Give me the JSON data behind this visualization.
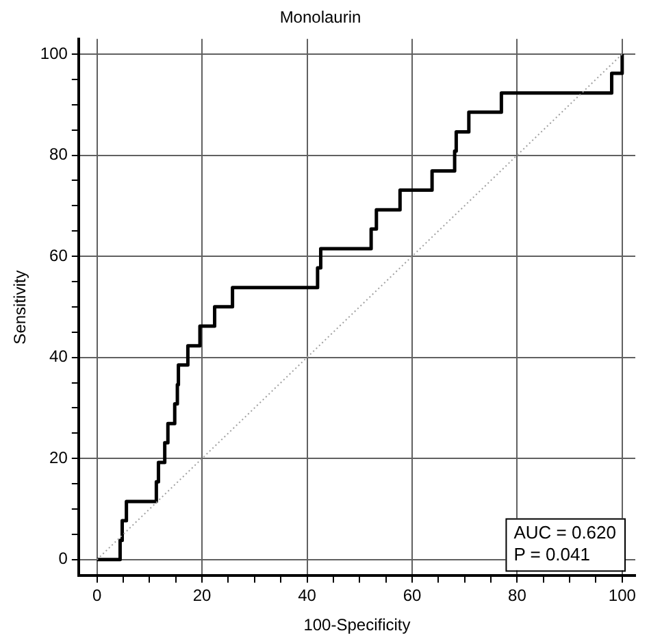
{
  "chart_data": {
    "type": "step",
    "title": "Monolaurin",
    "xlabel": "100-Specificity",
    "ylabel": "Sensitivity",
    "xlim": [
      -3.5,
      102.5
    ],
    "ylim": [
      -3.2,
      103
    ],
    "xticks": [
      0,
      {
        "value": 5,
        "label": null
      },
      {
        "value": 10,
        "label": null
      },
      {
        "value": 15,
        "label": null
      },
      20,
      {
        "value": 25,
        "label": null
      },
      {
        "value": 30,
        "label": null
      },
      {
        "value": 35,
        "label": null
      },
      40,
      {
        "value": 45,
        "label": null
      },
      {
        "value": 50,
        "label": null
      },
      {
        "value": 55,
        "label": null
      },
      60,
      {
        "value": 65,
        "label": null
      },
      {
        "value": 70,
        "label": null
      },
      {
        "value": 75,
        "label": null
      },
      80,
      {
        "value": 85,
        "label": null
      },
      {
        "value": 90,
        "label": null
      },
      {
        "value": 95,
        "label": null
      },
      100
    ],
    "yticks": [
      0,
      {
        "value": 5,
        "label": null
      },
      {
        "value": 10,
        "label": null
      },
      {
        "value": 15,
        "label": null
      },
      20,
      {
        "value": 25,
        "label": null
      },
      {
        "value": 30,
        "label": null
      },
      {
        "value": 35,
        "label": null
      },
      40,
      {
        "value": 45,
        "label": null
      },
      {
        "value": 50,
        "label": null
      },
      {
        "value": 55,
        "label": null
      },
      60,
      {
        "value": 65,
        "label": null
      },
      {
        "value": 70,
        "label": null
      },
      {
        "value": 75,
        "label": null
      },
      80,
      {
        "value": 85,
        "label": null
      },
      {
        "value": 90,
        "label": null
      },
      {
        "value": 95,
        "label": null
      },
      100
    ],
    "grid": true,
    "legend": false,
    "marker": "none",
    "series": [
      {
        "color": "#000000",
        "line_style": "solid",
        "x": [
          0,
          4.4,
          4.8,
          5.6,
          11.3,
          11.7,
          12.9,
          13.5,
          14.8,
          15.3,
          15.5,
          17.3,
          19.6,
          22.4,
          25.8,
          42.0,
          42.6,
          52.2,
          53.2,
          57.7,
          63.8,
          68.1,
          68.4,
          70.8,
          77.0,
          98.0,
          100
        ],
        "values": [
          0,
          3.8,
          7.7,
          11.5,
          15.4,
          19.2,
          23.1,
          26.9,
          30.8,
          34.6,
          38.5,
          42.3,
          46.2,
          50,
          53.8,
          57.7,
          61.5,
          65.4,
          69.2,
          73.1,
          76.9,
          80.8,
          84.6,
          88.5,
          92.3,
          96.2,
          100
        ]
      },
      {
        "type": "line",
        "color": "#a0a0a0",
        "line_style": "dotted",
        "x": [
          0,
          100
        ],
        "values": [
          0,
          100
        ]
      }
    ],
    "annotations": [
      "AUC = 0.620",
      "P = 0.041"
    ]
  }
}
